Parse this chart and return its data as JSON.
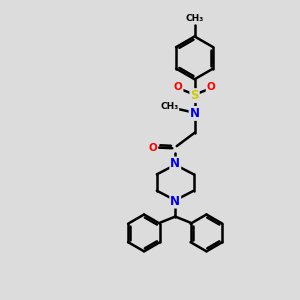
{
  "background_color": "#dcdcdc",
  "atom_colors": {
    "C": "#000000",
    "N": "#0000ee",
    "O": "#ff0000",
    "S": "#cccc00"
  },
  "bond_color": "#000000",
  "bond_width": 1.8,
  "figsize": [
    3.0,
    3.0
  ],
  "dpi": 100
}
